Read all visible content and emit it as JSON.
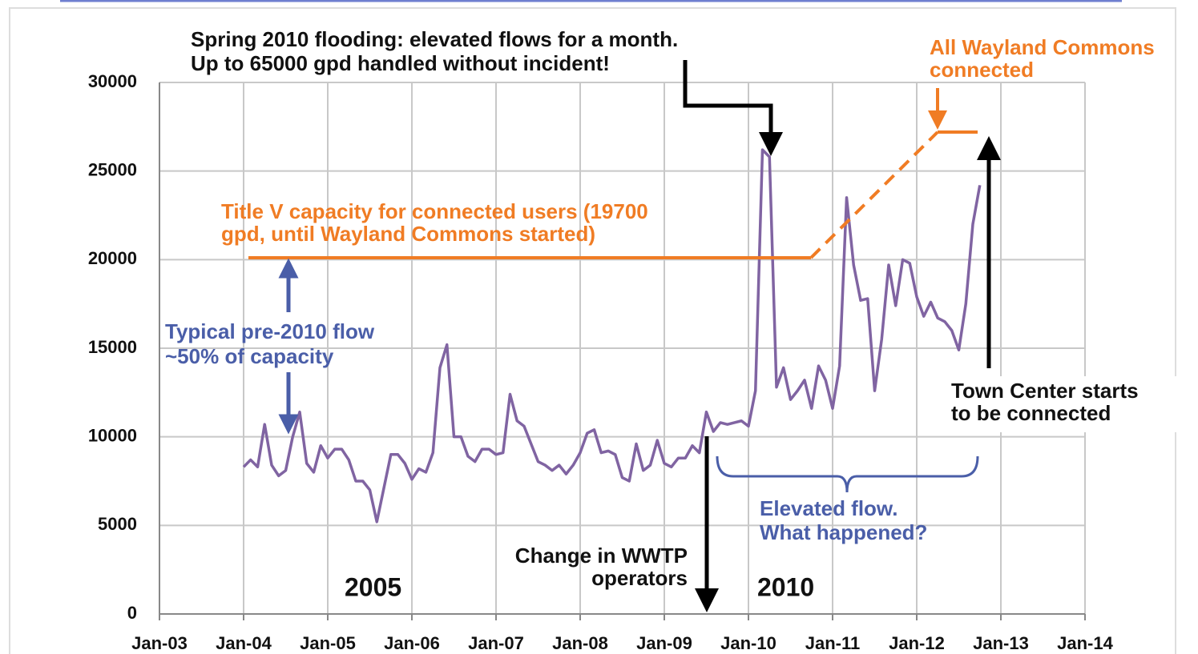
{
  "chart_data": {
    "type": "line",
    "x": [
      "Jan-04",
      "Feb-04",
      "Mar-04",
      "Apr-04",
      "May-04",
      "Jun-04",
      "Jul-04",
      "Aug-04",
      "Sep-04",
      "Oct-04",
      "Nov-04",
      "Dec-04",
      "Jan-05",
      "Feb-05",
      "Mar-05",
      "Apr-05",
      "May-05",
      "Jun-05",
      "Jul-05",
      "Aug-05",
      "Sep-05",
      "Oct-05",
      "Nov-05",
      "Dec-05",
      "Jan-06",
      "Feb-06",
      "Mar-06",
      "Apr-06",
      "May-06",
      "Jun-06",
      "Jul-06",
      "Aug-06",
      "Sep-06",
      "Oct-06",
      "Nov-06",
      "Dec-06",
      "Jan-07",
      "Feb-07",
      "Mar-07",
      "Apr-07",
      "May-07",
      "Jun-07",
      "Jul-07",
      "Aug-07",
      "Sep-07",
      "Oct-07",
      "Nov-07",
      "Dec-07",
      "Jan-08",
      "Feb-08",
      "Mar-08",
      "Apr-08",
      "May-08",
      "Jun-08",
      "Jul-08",
      "Aug-08",
      "Sep-08",
      "Oct-08",
      "Nov-08",
      "Dec-08",
      "Jan-09",
      "Feb-09",
      "Mar-09",
      "Apr-09",
      "May-09",
      "Jun-09",
      "Jul-09",
      "Aug-09",
      "Sep-09",
      "Oct-09",
      "Nov-09",
      "Dec-09",
      "Jan-10",
      "Feb-10",
      "Mar-10",
      "Apr-10",
      "May-10",
      "Jun-10",
      "Jul-10",
      "Aug-10",
      "Sep-10",
      "Oct-10",
      "Nov-10",
      "Dec-10",
      "Jan-11",
      "Feb-11",
      "Mar-11",
      "Apr-11",
      "May-11",
      "Jun-11",
      "Jul-11",
      "Aug-11",
      "Sep-11",
      "Oct-11",
      "Nov-11",
      "Dec-11",
      "Jan-12",
      "Feb-12",
      "Mar-12",
      "Apr-12",
      "May-12",
      "Jun-12",
      "Jul-12",
      "Aug-12",
      "Sep-12",
      "Oct-12"
    ],
    "series": [
      {
        "color": "#8064a2",
        "values": [
          8300,
          8700,
          8300,
          10700,
          8400,
          7800,
          8100,
          10000,
          11400,
          8500,
          8000,
          9500,
          8800,
          9300,
          9300,
          8700,
          7500,
          7500,
          7000,
          5200,
          7100,
          9000,
          9000,
          8500,
          7600,
          8200,
          8000,
          9100,
          13900,
          15200,
          10000,
          10000,
          8900,
          8600,
          9300,
          9300,
          9000,
          9100,
          12400,
          10900,
          10600,
          9600,
          8600,
          8400,
          8100,
          8400,
          7900,
          8400,
          9100,
          10200,
          10400,
          9100,
          9200,
          9000,
          7700,
          7500,
          9600,
          8100,
          8400,
          9800,
          8500,
          8300,
          8800,
          8800,
          9500,
          9100,
          11400,
          10300,
          10800,
          10700,
          10800,
          10900,
          10600,
          12600,
          26200,
          25800,
          12800,
          13900,
          12100,
          12600,
          13200,
          11600,
          14000,
          13200,
          11600,
          14000,
          23500,
          19700,
          17700,
          17800,
          12600,
          15500,
          19700,
          17400,
          20000,
          19800,
          17900,
          16800,
          17600,
          16700,
          16500,
          16000,
          14900,
          17500,
          22000,
          24200
        ]
      }
    ],
    "xlim": [
      "Jan-03",
      "Jan-14"
    ],
    "xticks": [
      "Jan-03",
      "Jan-04",
      "Jan-05",
      "Jan-06",
      "Jan-07",
      "Jan-08",
      "Jan-09",
      "Jan-10",
      "Jan-11",
      "Jan-12",
      "Jan-13",
      "Jan-14"
    ],
    "ylim": [
      0,
      30000
    ],
    "yticks": [
      0,
      5000,
      10000,
      15000,
      20000,
      25000,
      30000
    ],
    "grid": true,
    "annotations": {
      "flood": [
        "Spring 2010 flooding: elevated flows for a month.",
        "Up to 65000 gpd handled without incident!"
      ],
      "wayland": [
        "All Wayland Commons",
        "connected"
      ],
      "capacity": [
        "Title V capacity for connected users (19700",
        "gpd, until Wayland Commons started)"
      ],
      "typical": [
        "Typical pre-2010 flow",
        "~50% of capacity"
      ],
      "town": [
        "Town Center starts",
        "to be connected"
      ],
      "elevated": [
        "Elevated flow.",
        "What happened?"
      ],
      "operators": [
        "Change in WWTP",
        "operators"
      ],
      "year_a": "2005",
      "year_b": "2010"
    }
  }
}
